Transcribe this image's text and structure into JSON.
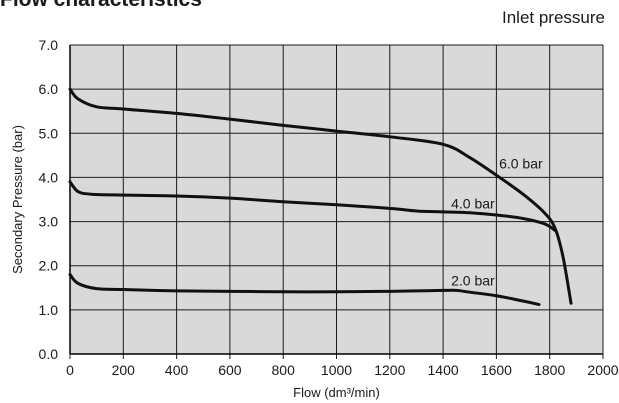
{
  "heading": "Flow characteristics",
  "legend_title": "Inlet pressure",
  "chart_data": {
    "type": "line",
    "title": "",
    "xlabel": "Flow (dm³/min)",
    "ylabel": "Secondary Pressure (bar)",
    "xlim": [
      0,
      2000
    ],
    "ylim": [
      0.0,
      7.0
    ],
    "x_ticks": [
      0,
      200,
      400,
      600,
      800,
      1000,
      1200,
      1400,
      1600,
      1800,
      2000
    ],
    "y_ticks": [
      0.0,
      1.0,
      2.0,
      3.0,
      4.0,
      5.0,
      6.0,
      7.0
    ],
    "x_tick_labels": [
      "0",
      "200",
      "400",
      "600",
      "800",
      "1000",
      "1200",
      "1400",
      "1600",
      "1800",
      "2000"
    ],
    "y_tick_labels": [
      "0.0",
      "1.0",
      "2.0",
      "3.0",
      "4.0",
      "5.0",
      "6.0",
      "7.0"
    ],
    "grid": true,
    "plot_background": "#d9d9d9",
    "line_color": "#111111",
    "series": [
      {
        "name": "6.0 bar",
        "points": [
          [
            0,
            6.0
          ],
          [
            30,
            5.78
          ],
          [
            100,
            5.6
          ],
          [
            200,
            5.55
          ],
          [
            400,
            5.45
          ],
          [
            600,
            5.32
          ],
          [
            800,
            5.18
          ],
          [
            1000,
            5.05
          ],
          [
            1200,
            4.92
          ],
          [
            1400,
            4.75
          ],
          [
            1500,
            4.45
          ],
          [
            1600,
            4.05
          ],
          [
            1700,
            3.62
          ],
          [
            1780,
            3.2
          ],
          [
            1820,
            2.85
          ],
          [
            1850,
            2.2
          ],
          [
            1880,
            1.15
          ]
        ],
        "label_at": [
          1610,
          4.2
        ]
      },
      {
        "name": "4.0 bar",
        "points": [
          [
            0,
            3.9
          ],
          [
            30,
            3.68
          ],
          [
            80,
            3.62
          ],
          [
            200,
            3.6
          ],
          [
            400,
            3.58
          ],
          [
            600,
            3.53
          ],
          [
            800,
            3.45
          ],
          [
            1000,
            3.38
          ],
          [
            1200,
            3.3
          ],
          [
            1300,
            3.24
          ],
          [
            1400,
            3.22
          ],
          [
            1500,
            3.2
          ],
          [
            1600,
            3.15
          ],
          [
            1700,
            3.07
          ],
          [
            1780,
            2.95
          ],
          [
            1820,
            2.8
          ]
        ],
        "label_at": [
          1430,
          3.3
        ]
      },
      {
        "name": "2.0 bar",
        "points": [
          [
            0,
            1.8
          ],
          [
            30,
            1.6
          ],
          [
            100,
            1.48
          ],
          [
            200,
            1.46
          ],
          [
            400,
            1.43
          ],
          [
            600,
            1.42
          ],
          [
            800,
            1.41
          ],
          [
            1000,
            1.41
          ],
          [
            1200,
            1.42
          ],
          [
            1300,
            1.43
          ],
          [
            1400,
            1.44
          ],
          [
            1450,
            1.44
          ],
          [
            1500,
            1.4
          ],
          [
            1600,
            1.32
          ],
          [
            1700,
            1.2
          ],
          [
            1760,
            1.12
          ]
        ],
        "label_at": [
          1430,
          1.55
        ]
      }
    ]
  }
}
